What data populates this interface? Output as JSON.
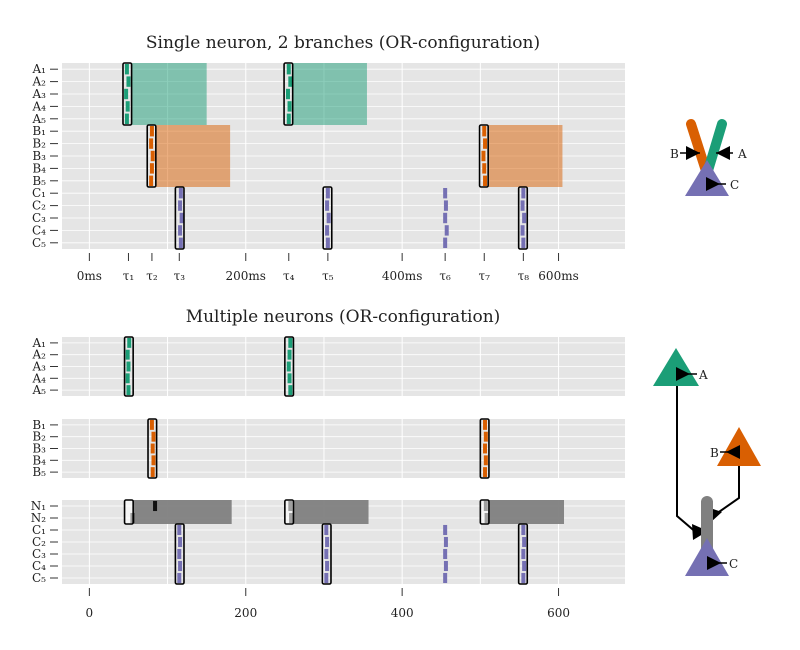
{
  "colors": {
    "A": "#1b9e77",
    "B": "#d95f02",
    "C": "#7570b3",
    "N": "#808080",
    "panel": "#e5e5e5",
    "grid": "#ffffff"
  },
  "chart_data": [
    {
      "type": "raster",
      "title": "Single neuron, 2 branches (OR-configuration)",
      "xlim": [
        -35,
        685
      ],
      "rows": [
        "A₁",
        "A₂",
        "A₃",
        "A₄",
        "A₅",
        "B₁",
        "B₂",
        "B₃",
        "B₄",
        "B₅",
        "C₁",
        "C₂",
        "C₃",
        "C₄",
        "C₅"
      ],
      "xticks": [
        {
          "value": 0,
          "label": "0ms"
        },
        {
          "value": 50,
          "label": "τ₁"
        },
        {
          "value": 80,
          "label": "τ₂"
        },
        {
          "value": 115,
          "label": "τ₃"
        },
        {
          "value": 200,
          "label": "200ms"
        },
        {
          "value": 255,
          "label": "τ₄"
        },
        {
          "value": 305,
          "label": "τ₅"
        },
        {
          "value": 400,
          "label": "400ms"
        },
        {
          "value": 455,
          "label": "τ₆"
        },
        {
          "value": 505,
          "label": "τ₇"
        },
        {
          "value": 555,
          "label": "τ₈"
        },
        {
          "value": 600,
          "label": "600ms"
        }
      ],
      "spikes": {
        "A": [
          [
            48,
            50,
            47,
            49,
            48
          ],
          [
            255,
            257,
            254,
            256,
            255
          ]
        ],
        "B": [
          [
            80,
            79,
            81,
            80,
            79
          ],
          [
            505,
            506,
            504,
            505,
            506
          ]
        ],
        "C": [
          [
            117,
            116,
            118,
            116,
            117
          ],
          [
            305,
            304,
            306,
            304,
            305
          ],
          [
            455,
            456,
            455,
            457,
            455
          ],
          [
            555,
            554,
            556,
            554,
            555
          ]
        ]
      },
      "boxes": [
        {
          "group": "A",
          "x0": 43,
          "x1": 54
        },
        {
          "group": "A",
          "x0": 249,
          "x1": 260
        },
        {
          "group": "B",
          "x0": 74,
          "x1": 85
        },
        {
          "group": "B",
          "x0": 499,
          "x1": 510
        },
        {
          "group": "C",
          "x0": 110,
          "x1": 121
        },
        {
          "group": "C",
          "x0": 299,
          "x1": 310
        },
        {
          "group": "C",
          "x0": 549,
          "x1": 560
        }
      ],
      "shades": [
        {
          "group": "A",
          "x0": 54,
          "x1": 150
        },
        {
          "group": "A",
          "x0": 260,
          "x1": 355
        },
        {
          "group": "B",
          "x0": 85,
          "x1": 180
        },
        {
          "group": "B",
          "x0": 510,
          "x1": 605
        }
      ]
    },
    {
      "type": "raster",
      "title": "Multiple neurons (OR-configuration)",
      "xlim": [
        -35,
        685
      ],
      "xticks": [
        0,
        200,
        400,
        600
      ],
      "panels": [
        {
          "rows": [
            "A₁",
            "A₂",
            "A₃",
            "A₄",
            "A₅"
          ],
          "spikes": {
            "A": [
              [
                51,
                49,
                50,
                49,
                50
              ],
              [
                257,
                256,
                255,
                256,
                257
              ]
            ]
          },
          "boxes": [
            {
              "group": "A",
              "x0": 45,
              "x1": 56
            },
            {
              "group": "A",
              "x0": 250,
              "x1": 261
            }
          ]
        },
        {
          "rows": [
            "B₁",
            "B₂",
            "B₃",
            "B₄",
            "B₅"
          ],
          "spikes": {
            "B": [
              [
                80,
                82,
                81,
                82,
                81
              ],
              [
                506,
                507,
                506,
                507,
                506
              ]
            ]
          },
          "boxes": [
            {
              "group": "B",
              "x0": 75,
              "x1": 86
            },
            {
              "group": "B",
              "x0": 500,
              "x1": 511
            }
          ]
        },
        {
          "rows": [
            "N₁",
            "N₂",
            "C₁",
            "C₂",
            "C₃",
            "C₄",
            "C₅"
          ],
          "spikes": {
            "N": [
              [
                84,
                55
              ],
              [
                257,
                258
              ],
              [
                507,
                508
              ]
            ],
            "C": [
              [
                115,
                116,
                115,
                116,
                115
              ],
              [
                303,
                304,
                303,
                304,
                303
              ],
              [
                455,
                456,
                455,
                456,
                455
              ],
              [
                555,
                556,
                555,
                556,
                555
              ]
            ]
          },
          "boxes": [
            {
              "group": "N",
              "rows": [
                0,
                1
              ],
              "x0": 45,
              "x1": 56
            },
            {
              "group": "N",
              "rows": [
                0,
                1
              ],
              "x0": 250,
              "x1": 261
            },
            {
              "group": "N",
              "rows": [
                0,
                1
              ],
              "x0": 500,
              "x1": 511
            },
            {
              "group": "C",
              "rows": [
                2,
                6
              ],
              "x0": 110,
              "x1": 121
            },
            {
              "group": "C",
              "rows": [
                2,
                6
              ],
              "x0": 298,
              "x1": 309
            },
            {
              "group": "C",
              "rows": [
                2,
                6
              ],
              "x0": 549,
              "x1": 560
            }
          ],
          "shades": [
            {
              "group": "N",
              "rows": [
                0,
                1
              ],
              "x0": 56,
              "x1": 182
            },
            {
              "group": "N",
              "rows": [
                0,
                1
              ],
              "x0": 261,
              "x1": 357
            },
            {
              "group": "N",
              "rows": [
                0,
                1
              ],
              "x0": 511,
              "x1": 607
            }
          ]
        }
      ]
    }
  ],
  "diagrams": {
    "single": {
      "labels": [
        "A",
        "B",
        "C"
      ]
    },
    "multiple": {
      "labels": [
        "A",
        "B",
        "C"
      ]
    }
  }
}
